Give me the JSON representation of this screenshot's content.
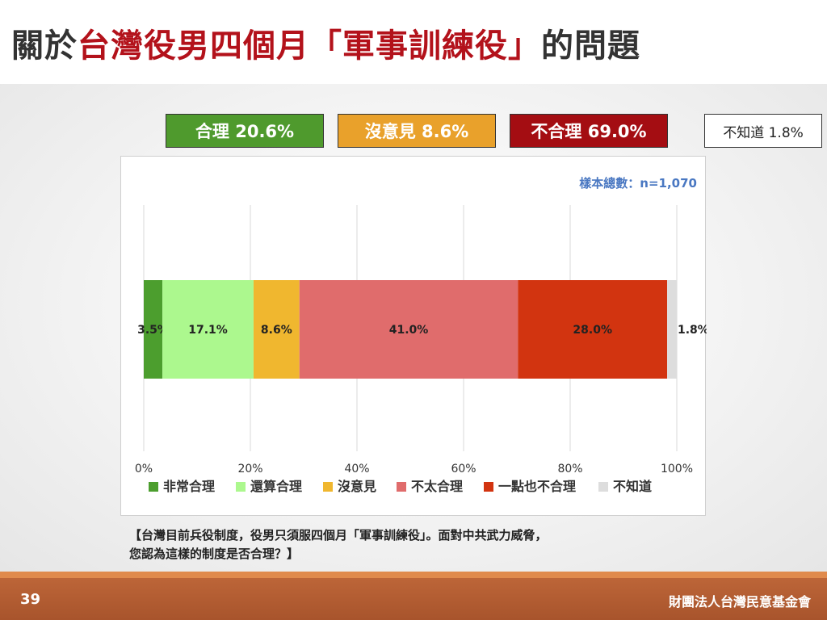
{
  "title": {
    "prefix": "關於",
    "highlight": "台灣役男四個月「軍事訓練役」",
    "suffix": "的問題"
  },
  "summary": {
    "agree": "合理 20.6%",
    "neutral": "沒意見 8.6%",
    "disagree": "不合理 69.0%",
    "unknown": "不知道 1.8%"
  },
  "sample_size": "樣本總數：n=1,070",
  "question": {
    "line1": "【台灣目前兵役制度，役男只須服四個月「軍事訓練役」。面對中共武力威脅，",
    "line2": "您認為這樣的制度是否合理？】"
  },
  "page_number": "39",
  "organization": "財團法人台灣民意基金會",
  "chart_data": {
    "type": "bar",
    "orientation": "horizontal-stacked",
    "xlim": [
      0,
      100
    ],
    "x_ticks": [
      "0%",
      "20%",
      "40%",
      "60%",
      "80%",
      "100%"
    ],
    "grid": true,
    "legend_position": "bottom",
    "series": [
      {
        "name": "非常合理",
        "value": 3.5,
        "label": "3.5%",
        "color": "#4c9e2e"
      },
      {
        "name": "還算合理",
        "value": 17.1,
        "label": "17.1%",
        "color": "#acf88e"
      },
      {
        "name": "沒意見",
        "value": 8.6,
        "label": "8.6%",
        "color": "#f0b72f"
      },
      {
        "name": "不太合理",
        "value": 41.0,
        "label": "41.0%",
        "color": "#e06c6c"
      },
      {
        "name": "一點也不合理",
        "value": 28.0,
        "label": "28.0%",
        "color": "#d23410"
      },
      {
        "name": "不知道",
        "value": 1.8,
        "label": "1.8%",
        "color": "#dddddd"
      }
    ]
  }
}
